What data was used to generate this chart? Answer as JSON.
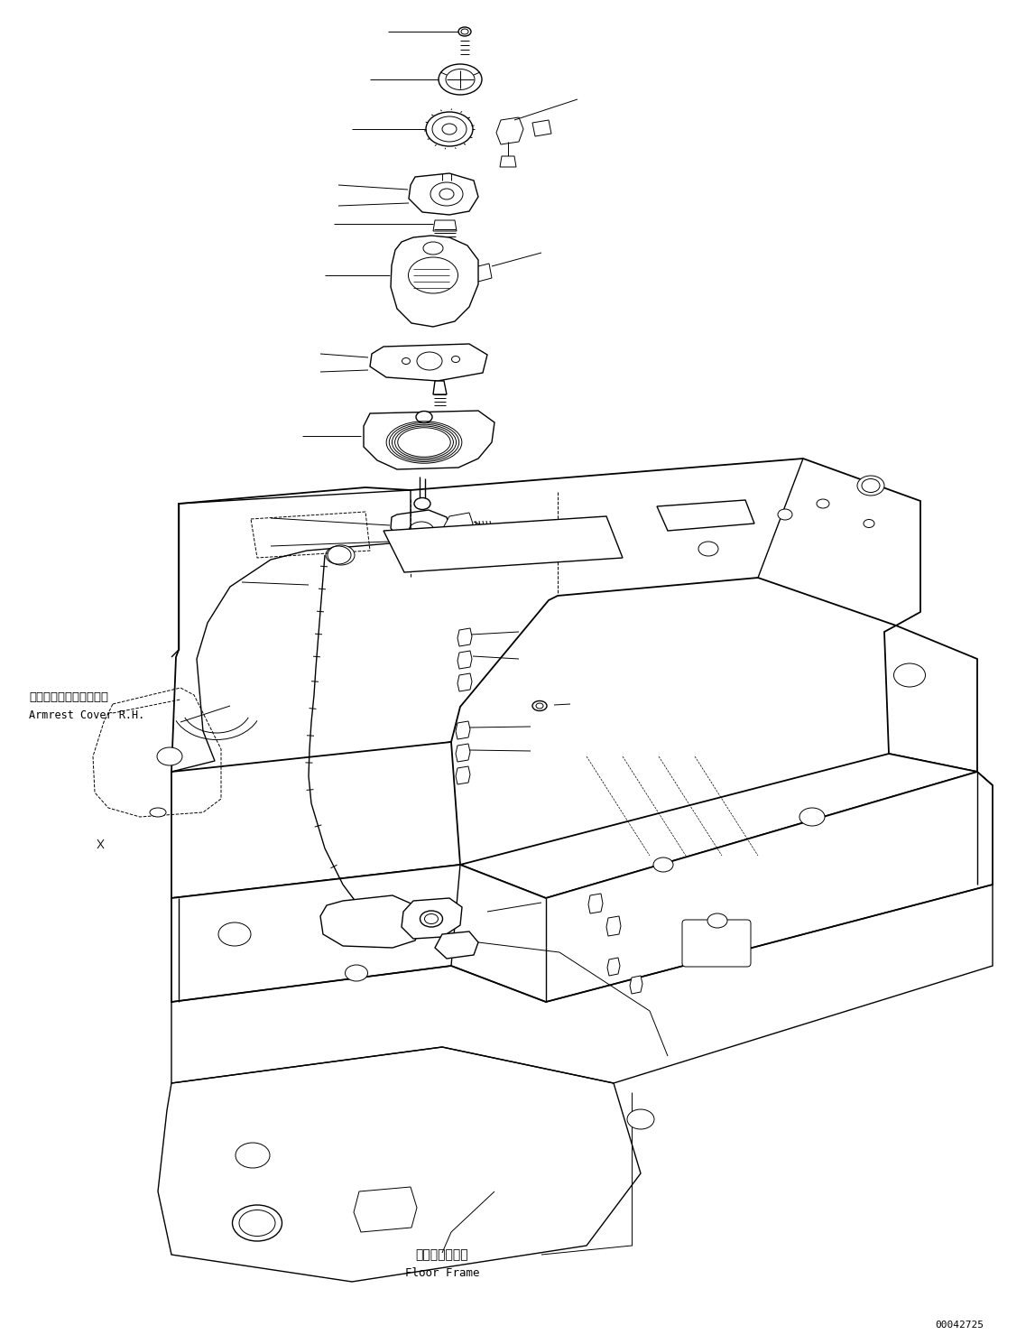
{
  "bg_color": "#ffffff",
  "line_color": "#000000",
  "fig_width": 11.47,
  "fig_height": 14.89,
  "dpi": 100,
  "label_armrest_jp": "アームレストカバー　右",
  "label_armrest_en": "Armrest Cover R.H.",
  "label_floor_jp": "フロアフレーム",
  "label_floor_en": "Floor Frame",
  "catalog_number": "00042725"
}
